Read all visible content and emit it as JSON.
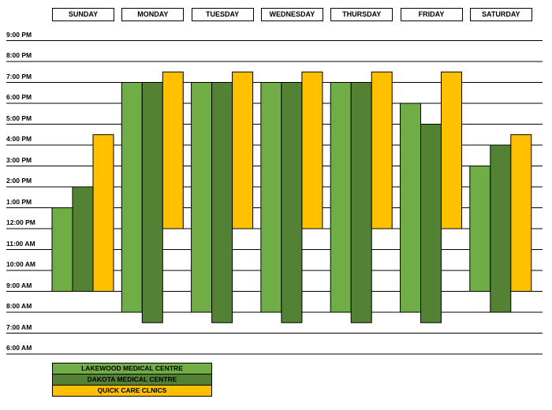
{
  "chart_data": {
    "type": "bar",
    "title": "",
    "categories": [
      "SUNDAY",
      "MONDAY",
      "TUESDAY",
      "WEDNESDAY",
      "THURSDAY",
      "FRIDAY",
      "SATURDAY"
    ],
    "y_ticks": [
      "9:00 PM",
      "8:00 PM",
      "7:00 PM",
      "6:00 PM",
      "5:00 PM",
      "4:00 PM",
      "3:00 PM",
      "2:00 PM",
      "1:00 PM",
      "12:00 PM",
      "11:00 AM",
      "10:00 AM",
      "9:00 AM",
      "8:00 AM",
      "7:00 AM",
      "6:00 AM"
    ],
    "ylim": [
      "6:00 AM",
      "9:00 PM"
    ],
    "grid": true,
    "legend_position": "bottom-left",
    "series": [
      {
        "name": "LAKEWOOD MEDICAL CENTRE",
        "color": "#70AD47",
        "ranges": [
          [
            "9:00 AM",
            "1:00 PM"
          ],
          [
            "8:00 AM",
            "7:00 PM"
          ],
          [
            "8:00 AM",
            "7:00 PM"
          ],
          [
            "8:00 AM",
            "7:00 PM"
          ],
          [
            "8:00 AM",
            "7:00 PM"
          ],
          [
            "8:00 AM",
            "6:00 PM"
          ],
          [
            "9:00 AM",
            "3:00 PM"
          ]
        ]
      },
      {
        "name": "DAKOTA MEDICAL CENTRE",
        "color": "#548235",
        "ranges": [
          [
            "9:00 AM",
            "2:00 PM"
          ],
          [
            "7:30 AM",
            "7:00 PM"
          ],
          [
            "7:30 AM",
            "7:00 PM"
          ],
          [
            "7:30 AM",
            "7:00 PM"
          ],
          [
            "7:30 AM",
            "7:00 PM"
          ],
          [
            "7:30 AM",
            "5:00 PM"
          ],
          [
            "8:00 AM",
            "4:00 PM"
          ]
        ]
      },
      {
        "name": "QUICK CARE CLNICS",
        "color": "#FFC000",
        "ranges": [
          [
            "9:00 AM",
            "4:30 PM"
          ],
          [
            "12:00 PM",
            "7:30 PM"
          ],
          [
            "12:00 PM",
            "7:30 PM"
          ],
          [
            "12:00 PM",
            "7:30 PM"
          ],
          [
            "12:00 PM",
            "7:30 PM"
          ],
          [
            "12:00 PM",
            "7:30 PM"
          ],
          [
            "9:00 AM",
            "4:30 PM"
          ]
        ]
      }
    ]
  }
}
